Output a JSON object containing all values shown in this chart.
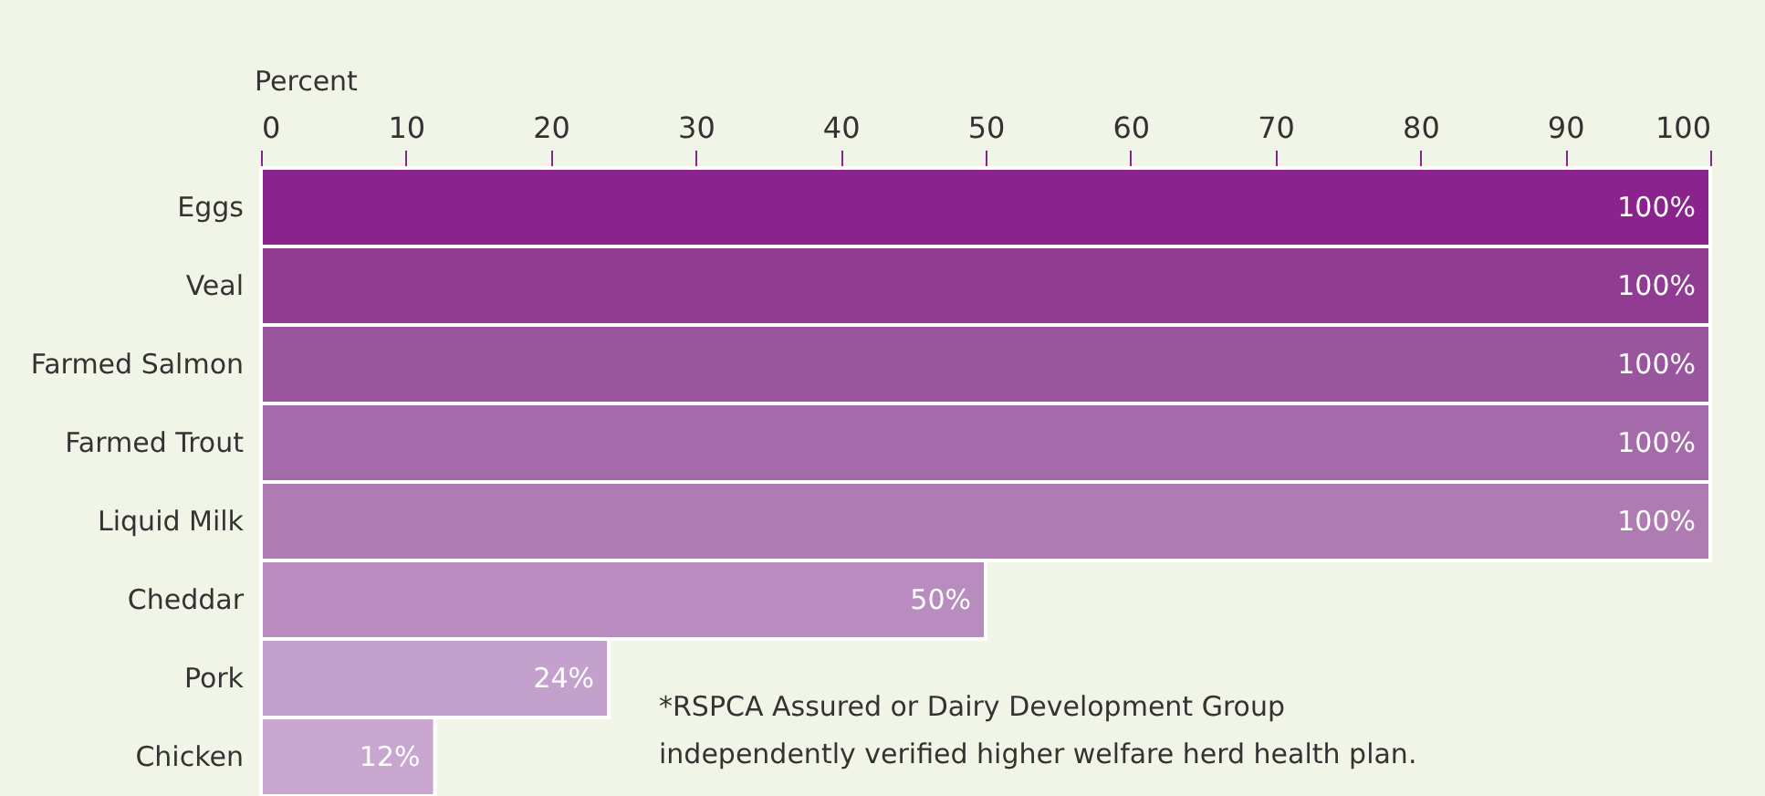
{
  "chart_data": {
    "type": "bar",
    "orientation": "horizontal",
    "xlabel": "Percent",
    "categories": [
      "Eggs",
      "Veal",
      "Farmed Salmon",
      "Farmed Trout",
      "Liquid Milk",
      "Cheddar",
      "Pork",
      "Chicken"
    ],
    "values": [
      100,
      100,
      100,
      100,
      100,
      50,
      24,
      12
    ],
    "colors": [
      "#8b238c",
      "#913c93",
      "#9a559f",
      "#a46aa9",
      "#ae7bb3",
      "#b98cc0",
      "#c4a0cc",
      "#c9a6d0"
    ],
    "value_labels": [
      "100%",
      "100%",
      "100%",
      "100%",
      "100%",
      "50%",
      "24%",
      "12%"
    ],
    "xlim": [
      0,
      100
    ],
    "xticks": [
      0,
      10,
      20,
      30,
      40,
      50,
      60,
      70,
      80,
      90,
      100
    ],
    "grid": false,
    "annotations": [
      "*RSPCA Assured or Dairy Development Group\nindependently verified higher welfare herd health plan."
    ]
  }
}
